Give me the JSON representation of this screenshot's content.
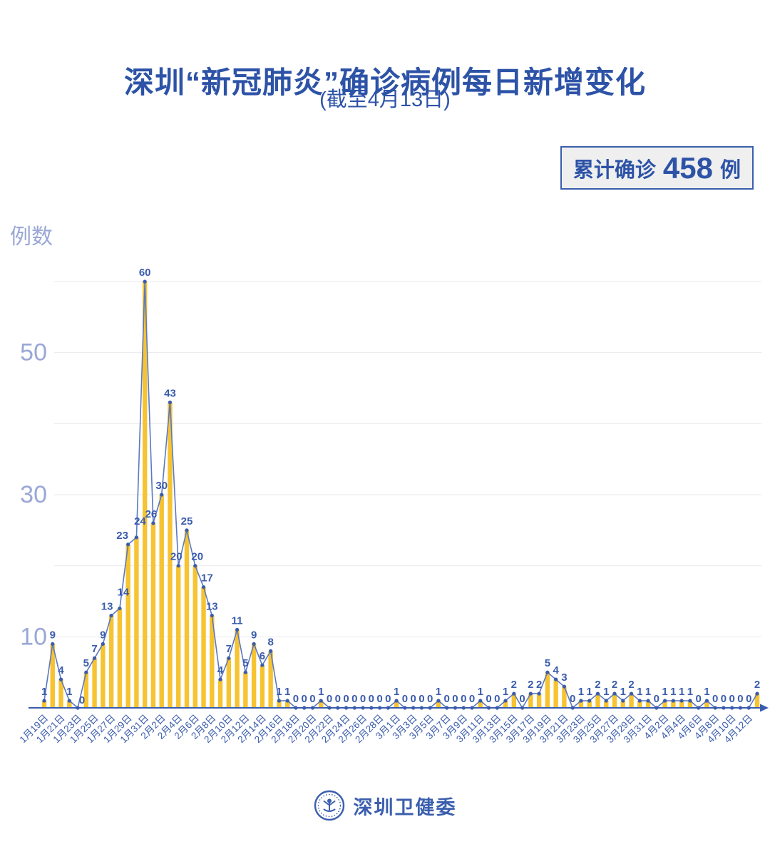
{
  "header": {
    "title": "深圳“新冠肺炎”确诊病例每日新增变化",
    "subtitle": "(截至4月13日)"
  },
  "badge": {
    "label": "累计确诊",
    "value": "458",
    "unit": "例"
  },
  "footer": {
    "org": "深圳卫健委"
  },
  "colors": {
    "title_blue": "#2d53a7",
    "axis_blue": "#3a5cac",
    "line_blue": "#5b79c1",
    "bar_yellow": "#f6c331",
    "periwinkle": "#9aa7d6",
    "gridline": "#e9e9ee",
    "badge_bg": "#efefef"
  },
  "chart_data": {
    "type": "bar+line",
    "title": "深圳“新冠肺炎”确诊病例每日新增变化",
    "subtitle": "(截至4月13日)",
    "ylabel": "例数",
    "ylim": [
      0,
      60
    ],
    "gridlines": [
      10,
      20,
      30,
      40,
      50,
      60
    ],
    "y_tick_labels": [
      10,
      30,
      50
    ],
    "x_label_every": 2,
    "cumulative_total": 458,
    "dates": [
      "1月19日",
      "1月20日",
      "1月21日",
      "1月22日",
      "1月23日",
      "1月24日",
      "1月25日",
      "1月26日",
      "1月27日",
      "1月28日",
      "1月29日",
      "1月30日",
      "1月31日",
      "2月1日",
      "2月2日",
      "2月3日",
      "2月4日",
      "2月5日",
      "2月6日",
      "2月7日",
      "2月8日",
      "2月9日",
      "2月10日",
      "2月11日",
      "2月12日",
      "2月13日",
      "2月14日",
      "2月15日",
      "2月16日",
      "2月17日",
      "2月18日",
      "2月19日",
      "2月20日",
      "2月21日",
      "2月22日",
      "2月23日",
      "2月24日",
      "2月25日",
      "2月26日",
      "2月27日",
      "2月28日",
      "2月29日",
      "3月1日",
      "3月2日",
      "3月3日",
      "3月4日",
      "3月5日",
      "3月6日",
      "3月7日",
      "3月8日",
      "3月9日",
      "3月10日",
      "3月11日",
      "3月12日",
      "3月13日",
      "3月14日",
      "3月15日",
      "3月16日",
      "3月17日",
      "3月18日",
      "3月19日",
      "3月20日",
      "3月21日",
      "3月22日",
      "3月23日",
      "3月24日",
      "3月25日",
      "3月26日",
      "3月27日",
      "3月28日",
      "3月29日",
      "3月30日",
      "3月31日",
      "4月1日",
      "4月2日",
      "4月3日",
      "4月4日",
      "4月5日",
      "4月6日",
      "4月7日",
      "4月8日",
      "4月9日",
      "4月10日",
      "4月11日",
      "4月12日",
      "4月13日"
    ],
    "values": [
      1,
      9,
      4,
      1,
      0,
      5,
      7,
      9,
      13,
      14,
      23,
      24,
      60,
      26,
      30,
      43,
      20,
      25,
      20,
      17,
      13,
      4,
      7,
      11,
      5,
      9,
      6,
      8,
      1,
      1,
      0,
      0,
      0,
      1,
      0,
      0,
      0,
      0,
      0,
      0,
      0,
      0,
      1,
      0,
      0,
      0,
      0,
      1,
      0,
      0,
      0,
      0,
      1,
      0,
      0,
      1,
      2,
      0,
      2,
      2,
      5,
      4,
      3,
      0,
      1,
      1,
      2,
      1,
      2,
      1,
      2,
      1,
      1,
      0,
      1,
      1,
      1,
      1,
      0,
      1,
      0,
      0,
      0,
      0,
      0,
      2
    ],
    "x_tick_labels": [
      "1月19日",
      "1月21日",
      "1月23日",
      "1月25日",
      "1月27日",
      "1月29日",
      "1月31日",
      "2月2日",
      "2月4日",
      "2月6日",
      "2月8日",
      "2月10日",
      "2月12日",
      "2月14日",
      "2月16日",
      "2月18日",
      "2月20日",
      "2月22日",
      "2月24日",
      "2月26日",
      "2月28日",
      "3月1日",
      "3月3日",
      "3月5日",
      "3月7日",
      "3月9日",
      "3月11日",
      "3月13日",
      "3月15日",
      "3月17日",
      "3月19日",
      "3月21日",
      "3月23日",
      "3月25日",
      "3月27日",
      "3月29日",
      "3月31日",
      "4月2日",
      "4月4日",
      "4月6日",
      "4月8日",
      "4月10日",
      "4月12日"
    ]
  }
}
